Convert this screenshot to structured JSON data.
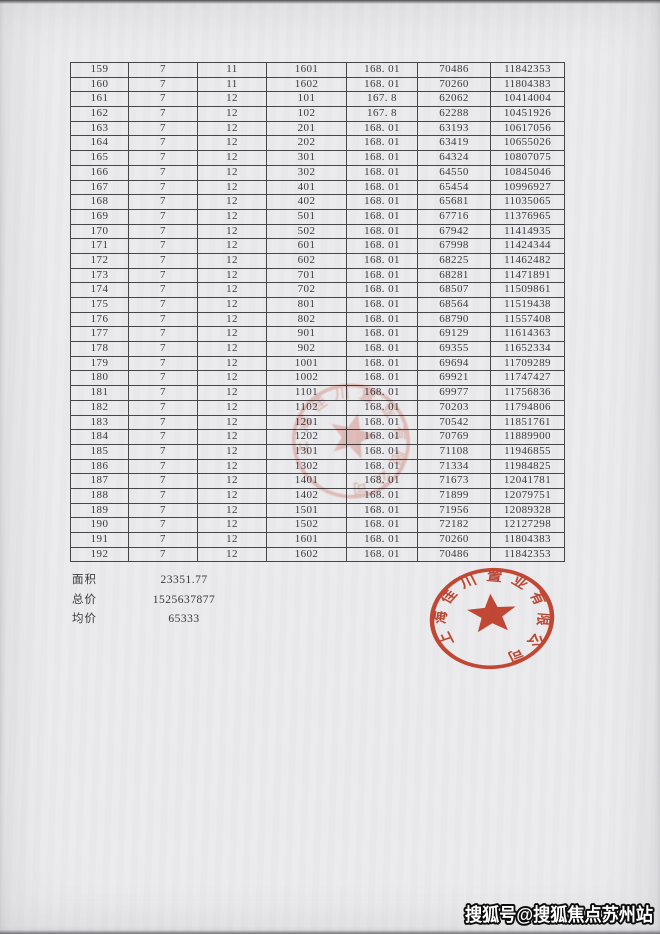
{
  "page": {
    "table": {
      "rows": [
        [
          "159",
          "7",
          "11",
          "1601",
          "168. 01",
          "70486",
          "11842353"
        ],
        [
          "160",
          "7",
          "11",
          "1602",
          "168. 01",
          "70260",
          "11804383"
        ],
        [
          "161",
          "7",
          "12",
          "101",
          "167. 8",
          "62062",
          "10414004"
        ],
        [
          "162",
          "7",
          "12",
          "102",
          "167. 8",
          "62288",
          "10451926"
        ],
        [
          "163",
          "7",
          "12",
          "201",
          "168. 01",
          "63193",
          "10617056"
        ],
        [
          "164",
          "7",
          "12",
          "202",
          "168. 01",
          "63419",
          "10655026"
        ],
        [
          "165",
          "7",
          "12",
          "301",
          "168. 01",
          "64324",
          "10807075"
        ],
        [
          "166",
          "7",
          "12",
          "302",
          "168. 01",
          "64550",
          "10845046"
        ],
        [
          "167",
          "7",
          "12",
          "401",
          "168. 01",
          "65454",
          "10996927"
        ],
        [
          "168",
          "7",
          "12",
          "402",
          "168. 01",
          "65681",
          "11035065"
        ],
        [
          "169",
          "7",
          "12",
          "501",
          "168. 01",
          "67716",
          "11376965"
        ],
        [
          "170",
          "7",
          "12",
          "502",
          "168. 01",
          "67942",
          "11414935"
        ],
        [
          "171",
          "7",
          "12",
          "601",
          "168. 01",
          "67998",
          "11424344"
        ],
        [
          "172",
          "7",
          "12",
          "602",
          "168. 01",
          "68225",
          "11462482"
        ],
        [
          "173",
          "7",
          "12",
          "701",
          "168. 01",
          "68281",
          "11471891"
        ],
        [
          "174",
          "7",
          "12",
          "702",
          "168. 01",
          "68507",
          "11509861"
        ],
        [
          "175",
          "7",
          "12",
          "801",
          "168. 01",
          "68564",
          "11519438"
        ],
        [
          "176",
          "7",
          "12",
          "802",
          "168. 01",
          "68790",
          "11557408"
        ],
        [
          "177",
          "7",
          "12",
          "901",
          "168. 01",
          "69129",
          "11614363"
        ],
        [
          "178",
          "7",
          "12",
          "902",
          "168. 01",
          "69355",
          "11652334"
        ],
        [
          "179",
          "7",
          "12",
          "1001",
          "168. 01",
          "69694",
          "11709289"
        ],
        [
          "180",
          "7",
          "12",
          "1002",
          "168. 01",
          "69921",
          "11747427"
        ],
        [
          "181",
          "7",
          "12",
          "1101",
          "168. 01",
          "69977",
          "11756836"
        ],
        [
          "182",
          "7",
          "12",
          "1102",
          "168. 01",
          "70203",
          "11794806"
        ],
        [
          "183",
          "7",
          "12",
          "1201",
          "168. 01",
          "70542",
          "11851761"
        ],
        [
          "184",
          "7",
          "12",
          "1202",
          "168. 01",
          "70769",
          "11889900"
        ],
        [
          "185",
          "7",
          "12",
          "1301",
          "168. 01",
          "71108",
          "11946855"
        ],
        [
          "186",
          "7",
          "12",
          "1302",
          "168. 01",
          "71334",
          "11984825"
        ],
        [
          "187",
          "7",
          "12",
          "1401",
          "168. 01",
          "71673",
          "12041781"
        ],
        [
          "188",
          "7",
          "12",
          "1402",
          "168. 01",
          "71899",
          "12079751"
        ],
        [
          "189",
          "7",
          "12",
          "1501",
          "168. 01",
          "71956",
          "12089328"
        ],
        [
          "190",
          "7",
          "12",
          "1502",
          "168. 01",
          "72182",
          "12127298"
        ],
        [
          "191",
          "7",
          "12",
          "1601",
          "168. 01",
          "70260",
          "11804383"
        ],
        [
          "192",
          "7",
          "12",
          "1602",
          "168. 01",
          "70486",
          "11842353"
        ]
      ]
    },
    "summary": {
      "items": [
        {
          "label": "面积",
          "value": "23351.77"
        },
        {
          "label": "总价",
          "value": "1525637877"
        },
        {
          "label": "均价",
          "value": "65333"
        }
      ]
    },
    "stamps": {
      "company_seal_text": "上海佳川置业有限公司"
    },
    "watermark": {
      "text": "搜狐号@搜狐焦点苏州站"
    },
    "colors": {
      "stamp_red": "#cd3a22",
      "paper": "#e9e9eb",
      "ink": "#38383f"
    }
  }
}
